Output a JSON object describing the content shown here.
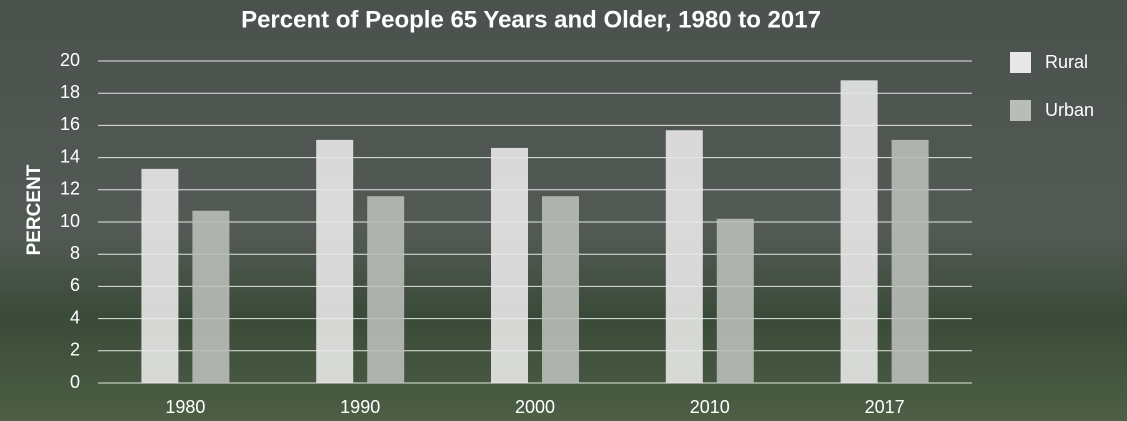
{
  "chart_data": {
    "type": "bar",
    "title": "Percent of People 65 Years and Older, 1980 to 2017",
    "y_label": "PERCENT",
    "categories": [
      "1980",
      "1990",
      "2000",
      "2010",
      "2017"
    ],
    "series": [
      {
        "name": "Rural",
        "color": "#e8e8e8",
        "values": [
          13.3,
          15.1,
          14.6,
          15.7,
          18.8
        ]
      },
      {
        "name": "Urban",
        "color": "#b9bcb9",
        "values": [
          10.7,
          11.6,
          11.6,
          10.2,
          15.1
        ]
      }
    ],
    "ylim": [
      0,
      20
    ],
    "yticks": [
      0,
      2,
      4,
      6,
      8,
      10,
      12,
      14,
      16,
      18,
      20
    ],
    "grid": true,
    "legend": "right"
  }
}
